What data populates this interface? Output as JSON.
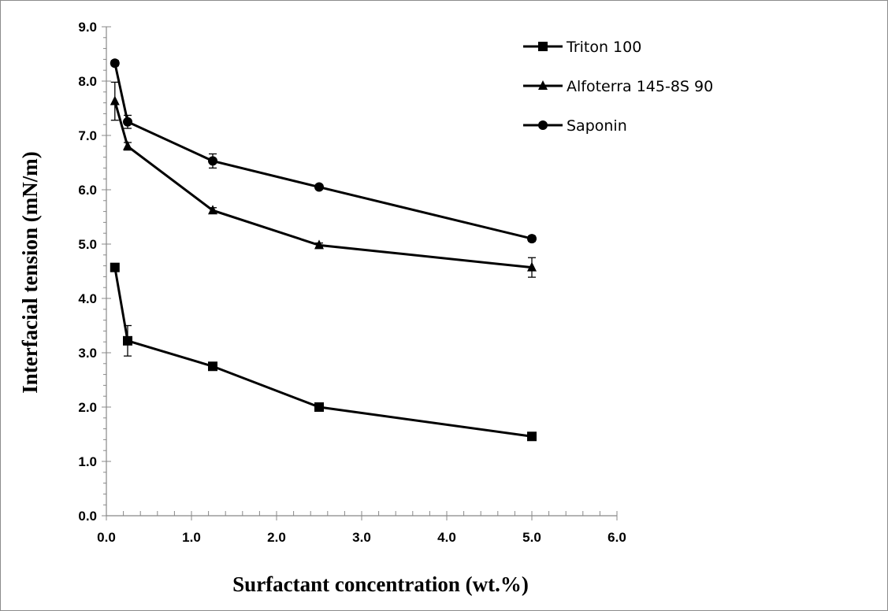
{
  "chart_data": {
    "type": "line",
    "title": "",
    "xlabel": "Surfactant concentration (wt.%)",
    "ylabel": "Interfacial tension (mN/m)",
    "xlim": [
      0,
      6
    ],
    "ylim": [
      0,
      9
    ],
    "x_ticks": [
      "0.0",
      "1.0",
      "2.0",
      "3.0",
      "4.0",
      "5.0",
      "6.0"
    ],
    "y_ticks": [
      "0.0",
      "1.0",
      "2.0",
      "3.0",
      "4.0",
      "5.0",
      "6.0",
      "7.0",
      "8.0",
      "9.0"
    ],
    "grid": false,
    "legend_position": "top-right",
    "series": [
      {
        "name": "Triton 100",
        "marker": "square",
        "color": "#000000",
        "x": [
          0.1,
          0.25,
          1.25,
          2.5,
          5.0
        ],
        "y": [
          4.57,
          3.22,
          2.75,
          2.0,
          1.46
        ],
        "error": [
          0.0,
          0.28,
          0.05,
          0.04,
          0.04
        ]
      },
      {
        "name": "Alfoterra 145-8S 90",
        "marker": "triangle",
        "color": "#000000",
        "x": [
          0.1,
          0.25,
          1.25,
          2.5,
          5.0
        ],
        "y": [
          7.63,
          6.8,
          5.62,
          4.98,
          4.57
        ],
        "error": [
          0.35,
          0.07,
          0.05,
          0.04,
          0.18
        ]
      },
      {
        "name": "Saponin",
        "marker": "circle",
        "color": "#000000",
        "x": [
          0.1,
          0.25,
          1.25,
          2.5,
          5.0
        ],
        "y": [
          8.33,
          7.25,
          6.53,
          6.05,
          5.1
        ],
        "error": [
          0.05,
          0.12,
          0.13,
          0.04,
          0.05
        ]
      }
    ]
  }
}
